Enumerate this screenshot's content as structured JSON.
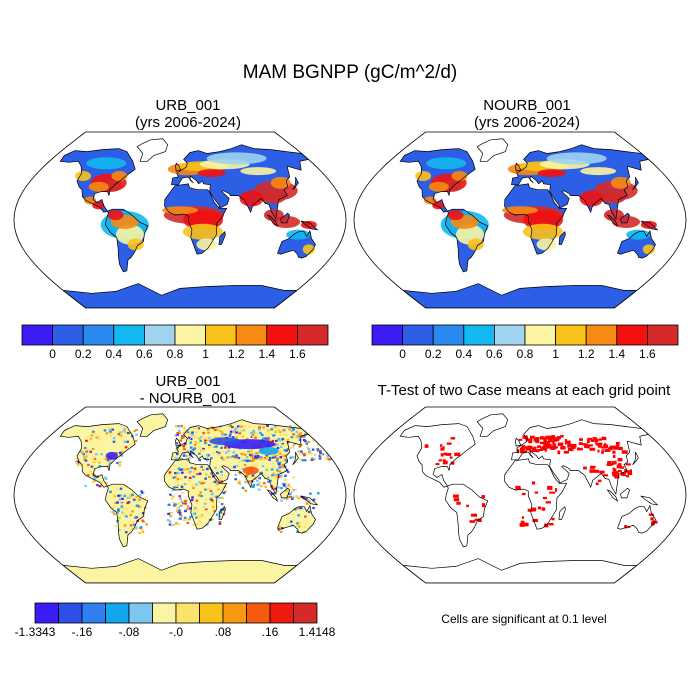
{
  "title": "MAM BGNPP (gC/m^2/d)",
  "panels": [
    {
      "id": "urb",
      "title_line1": "URB_001",
      "title_line2": "(yrs 2006-2024)"
    },
    {
      "id": "nourb",
      "title_line1": "NOURB_001",
      "title_line2": "(yrs 2006-2024)"
    },
    {
      "id": "diff",
      "title_line1": "URB_001",
      "title_line2": "- NOURB_001"
    },
    {
      "id": "ttest",
      "title_line1": "T-Test of two Case means at each grid point",
      "title_line2": ""
    }
  ],
  "colorbar_abs": {
    "colors": [
      "#3b1cf6",
      "#2d5ee6",
      "#2a8af0",
      "#12b8ef",
      "#9fd3ee",
      "#fbf5a3",
      "#f9c21a",
      "#f78a12",
      "#f2110f",
      "#d42a2a"
    ],
    "labels": [
      "0",
      "0.2",
      "0.4",
      "0.6",
      "0.8",
      "1",
      "1.2",
      "1.4",
      "1.6"
    ]
  },
  "colorbar_diff": {
    "colors": [
      "#3b1cf6",
      "#2d4fe6",
      "#2f7fee",
      "#12a6ef",
      "#7cc7ef",
      "#fbf5a3",
      "#fbe36a",
      "#f9c21a",
      "#f79712",
      "#f55a10",
      "#ee1a10",
      "#d42a2a"
    ],
    "labels": [
      "-1.3343",
      "-.16",
      "-.08",
      "-.0",
      ".08",
      ".16",
      "1.4148"
    ]
  },
  "significance_note": "Cells are significant at 0.1 level",
  "significance_color": "#ff0000",
  "ocean_color": "#ffffff",
  "coast_color": "#000000"
}
